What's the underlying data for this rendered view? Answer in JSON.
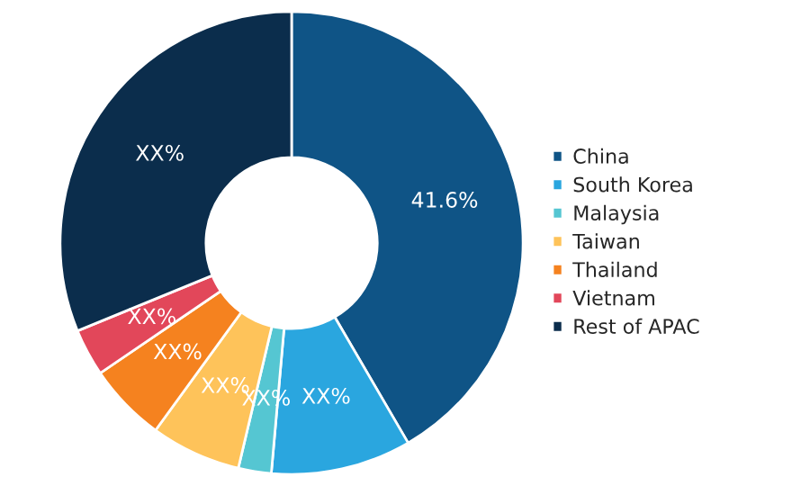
{
  "chart_data": {
    "type": "donut",
    "categories": [
      "China",
      "South Korea",
      "Malaysia",
      "Taiwan",
      "Thailand",
      "Vietnam",
      "Rest of APAC"
    ],
    "values": [
      41.6,
      9.8,
      2.3,
      6.3,
      5.5,
      3.3,
      31.2
    ],
    "value_labels": [
      "41.6%",
      "XX%",
      "XX%",
      "XX%",
      "XX%",
      "XX%",
      "XX%"
    ],
    "colors": [
      "#0f5486",
      "#2aa6df",
      "#55c6d2",
      "#fec35a",
      "#f5821f",
      "#e2475a",
      "#0b2d4c"
    ],
    "legend": "right"
  }
}
